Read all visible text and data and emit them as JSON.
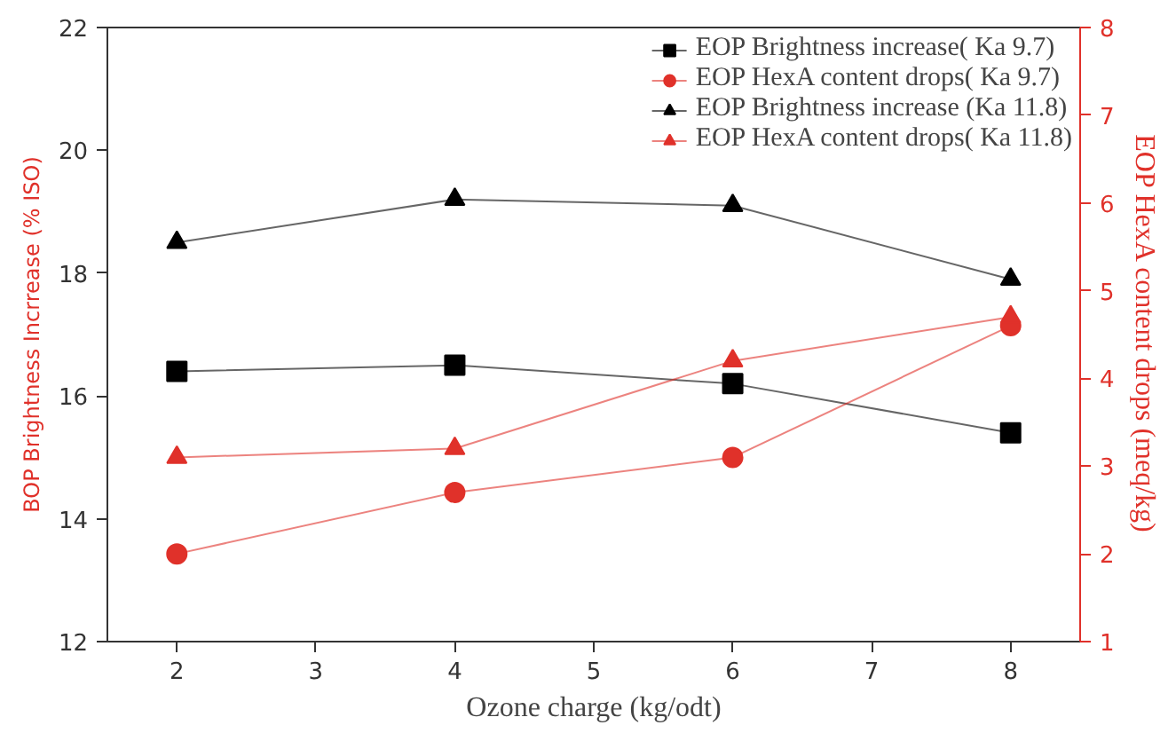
{
  "chart_data": {
    "type": "line",
    "xlabel": "Ozone charge (kg/odt)",
    "ylabel": "BOP Brightness Incrrease (% ISO)",
    "y2label": "EOP HexA content drops (meq/kg)",
    "x": [
      2,
      4,
      6,
      8
    ],
    "series": [
      {
        "name": "EOP Brightness increase( Ka 9.7)",
        "color": "#000000",
        "marker": "square",
        "values": [
          16.4,
          16.5,
          16.2,
          15.4
        ]
      },
      {
        "name": "EOP HexA content drops( Ka 9.7)",
        "color": "#e0312a",
        "marker": "circle",
        "axis": "y2",
        "values": [
          2.0,
          2.7,
          3.1,
          4.6
        ]
      },
      {
        "name": "EOP Brightness increase (Ka 11.8)",
        "color": "#000000",
        "marker": "triangle",
        "values": [
          18.5,
          19.2,
          19.1,
          17.9
        ]
      },
      {
        "name": "EOP HexA content drops( Ka 11.8)",
        "color": "#e0312a",
        "marker": "triangle",
        "axis": "y2",
        "values": [
          3.1,
          3.2,
          4.2,
          4.7
        ]
      }
    ],
    "xlim": [
      1.5,
      8.5
    ],
    "xticks": [
      2,
      3,
      4,
      5,
      6,
      7,
      8
    ],
    "ylim": [
      12,
      22
    ],
    "yticks": [
      12,
      14,
      16,
      18,
      20,
      22
    ],
    "y2lim": [
      1,
      8
    ],
    "y2ticks": [
      1,
      2,
      3,
      4,
      5,
      6,
      7,
      8
    ],
    "grid": false,
    "legend": "top right",
    "line_style": "solid"
  }
}
